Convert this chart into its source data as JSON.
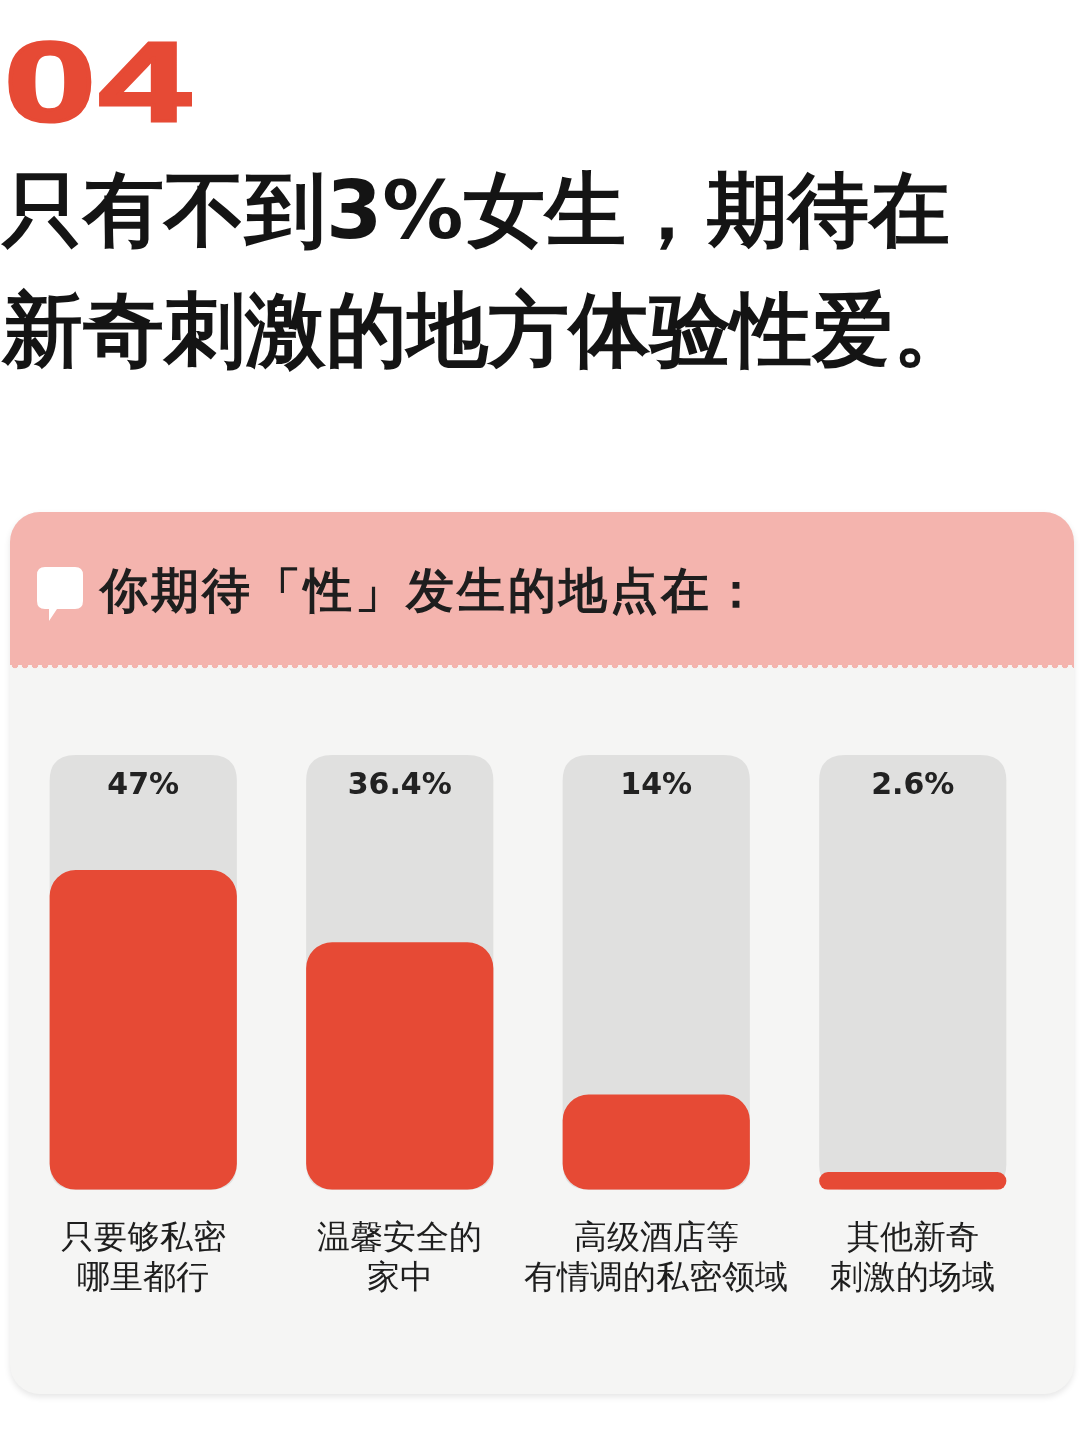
{
  "chart_data": {
    "type": "bar",
    "annotations": [
      "04"
    ],
    "title": "只有不到3%女生，期待在新奇刺激的地方体验性爱。",
    "subtitle": "你期待「性」发生的地点在：",
    "categories": [
      "只要够私密哪里都行",
      "温馨安全的家中",
      "高级酒店等有情调的私密领域",
      "其他新奇刺激的场域"
    ],
    "values": [
      47,
      36.4,
      14,
      2.6
    ],
    "value_labels": [
      "47%",
      "36.4%",
      "14%",
      "2.6%"
    ],
    "color": "#e64a35"
  }
}
